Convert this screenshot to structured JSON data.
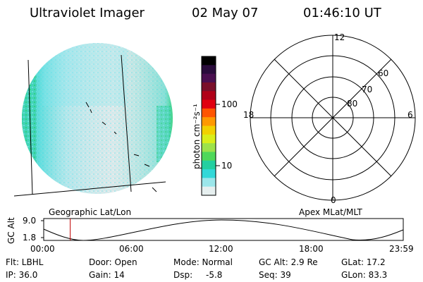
{
  "header": {
    "title": "Ultraviolet Imager",
    "date": "02 May 07",
    "time": "01:46:10 UT"
  },
  "colorbar": {
    "label": "photon cm⁻²s⁻¹",
    "tick_100": "100",
    "tick_10": "10",
    "colors": [
      "#000000",
      "#2a0c3c",
      "#4a0f50",
      "#7a0f2a",
      "#b00018",
      "#e00010",
      "#ff5500",
      "#ff9900",
      "#f2d100",
      "#d9ee1a",
      "#9de24a",
      "#4fd85a",
      "#23cfa0",
      "#32d8d8",
      "#9be6ea",
      "#e6efef"
    ]
  },
  "polar": {
    "label_12": "12",
    "label_6": "6",
    "label_18": "18",
    "label_0": "0",
    "label_60": "60",
    "label_70": "70",
    "label_80": "80"
  },
  "timeline": {
    "left_label": "Geographic Lat/Lon",
    "right_label": "Apex MLat/MLT",
    "y_axis_label": "GC Alt",
    "y_tick_high": "9.0",
    "y_tick_low": "1.8",
    "x_ticks": [
      "00:00",
      "06:00",
      "12:00",
      "18:00",
      "23:59"
    ],
    "current_marker_hours": 1.77
  },
  "status": {
    "flt": "Flt: LBHL",
    "door": "Door: Open",
    "mode": "Mode: Normal",
    "gc_alt": "GC Alt: 2.9 Re",
    "glat": "GLat:  17.2",
    "ip": "IP: 36.0",
    "gain": "Gain: 14",
    "dsp_label": "Dsp:",
    "dsp_value": "-5.8",
    "seq": "Seq: 39",
    "glon": "GLon:  83.3"
  }
}
